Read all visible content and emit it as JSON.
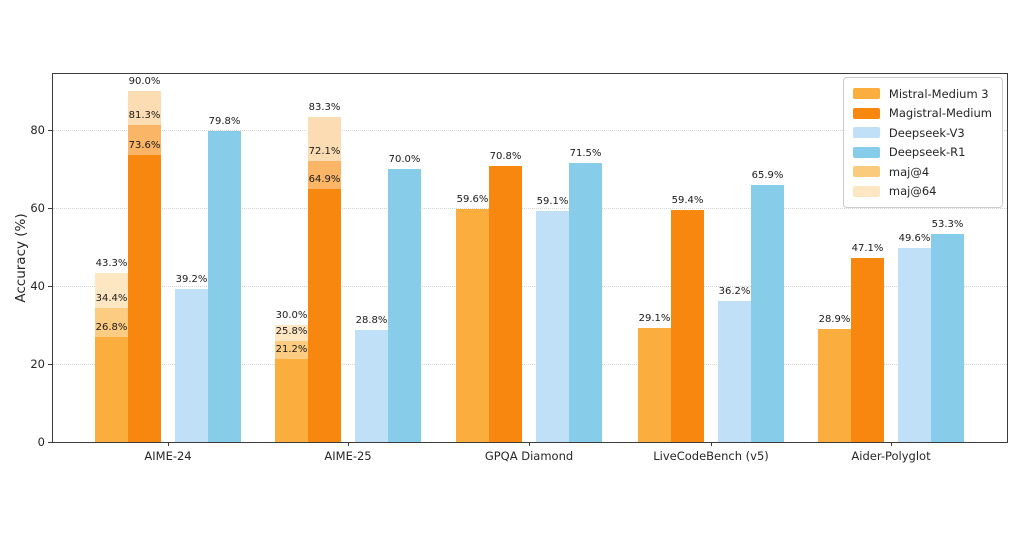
{
  "chart_data": {
    "type": "bar",
    "title": "",
    "ylabel": "Accuracy (%)",
    "categories": [
      "AIME-24",
      "AIME-25",
      "GPQA Diamond",
      "LiveCodeBench (v5)",
      "Aider-Polyglot"
    ],
    "series": [
      {
        "name": "Mistral-Medium 3",
        "color": "#FBAE3E",
        "values": [
          26.8,
          21.2,
          59.6,
          29.1,
          28.9
        ]
      },
      {
        "name": "Magistral-Medium",
        "color": "#F8870F",
        "values": [
          73.6,
          64.9,
          70.8,
          59.4,
          47.1
        ]
      },
      {
        "name": "Deepseek-V3",
        "color": "#BFE0F7",
        "values": [
          39.2,
          28.8,
          59.1,
          36.2,
          49.6
        ]
      },
      {
        "name": "Deepseek-R1",
        "color": "#87CDE9",
        "values": [
          79.8,
          70.0,
          71.5,
          65.9,
          53.3
        ]
      }
    ],
    "overlay_segments": [
      {
        "name": "maj@4",
        "category": 0,
        "series": 0,
        "from": 26.8,
        "to": 34.4,
        "color": "#FCCC82"
      },
      {
        "name": "maj@64",
        "category": 0,
        "series": 0,
        "from": 34.4,
        "to": 43.3,
        "color": "#FDE6C2"
      },
      {
        "name": "maj@4",
        "category": 0,
        "series": 1,
        "from": 73.6,
        "to": 81.3,
        "color": "#FAB566"
      },
      {
        "name": "maj@64",
        "category": 0,
        "series": 1,
        "from": 81.3,
        "to": 90.0,
        "color": "#FCDCB2"
      },
      {
        "name": "maj@4",
        "category": 1,
        "series": 0,
        "from": 21.2,
        "to": 25.8,
        "color": "#FCCC82"
      },
      {
        "name": "maj@64",
        "category": 1,
        "series": 0,
        "from": 25.8,
        "to": 30.0,
        "color": "#FDE6C2"
      },
      {
        "name": "maj@4",
        "category": 1,
        "series": 1,
        "from": 64.9,
        "to": 72.1,
        "color": "#FAB566"
      },
      {
        "name": "maj@64",
        "category": 1,
        "series": 1,
        "from": 72.1,
        "to": 83.3,
        "color": "#FCDCB2"
      }
    ],
    "legend": [
      {
        "label": "Mistral-Medium 3",
        "color": "#FBAE3E"
      },
      {
        "label": "Magistral-Medium",
        "color": "#F8870F"
      },
      {
        "label": "Deepseek-V3",
        "color": "#BFE0F7"
      },
      {
        "label": "Deepseek-R1",
        "color": "#87CDE9"
      },
      {
        "label": "maj@4",
        "color": "#FBCB7D"
      },
      {
        "label": "maj@64",
        "color": "#FCE6C3"
      }
    ],
    "legend_position": "upper-right",
    "yticks": [
      0,
      20,
      40,
      60,
      80
    ],
    "ylim": [
      0,
      94.3
    ],
    "grid": "horizontal-dotted",
    "label_format": "percent-1dp"
  }
}
